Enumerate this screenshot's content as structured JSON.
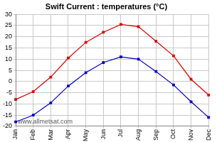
{
  "chart_data": {
    "type": "line",
    "title": "Swift Current : temperatures (°C)",
    "categories": [
      "Jan",
      "Feb",
      "Mar",
      "Apr",
      "May",
      "Jun",
      "Jul",
      "Aug",
      "Sep",
      "Oct",
      "Nov",
      "Dec"
    ],
    "series": [
      {
        "color": "#e00000",
        "marker": "square",
        "line_style": "solid",
        "values": [
          -8,
          -4.5,
          2,
          10.5,
          17.5,
          22,
          25.5,
          24.5,
          18,
          11.5,
          1,
          -6
        ]
      },
      {
        "color": "#0000cc",
        "marker": "square",
        "line_style": "solid",
        "values": [
          -18,
          -15,
          -9.5,
          -2,
          4,
          8.5,
          11,
          10,
          4.5,
          -1.5,
          -9,
          -16
        ]
      }
    ],
    "ylim": [
      -20,
      30
    ],
    "yticks": [
      -20,
      -15,
      -10,
      -5,
      0,
      5,
      10,
      15,
      20,
      25,
      30
    ],
    "grid": true,
    "annotations": [
      "www.allmetsat.com"
    ]
  }
}
